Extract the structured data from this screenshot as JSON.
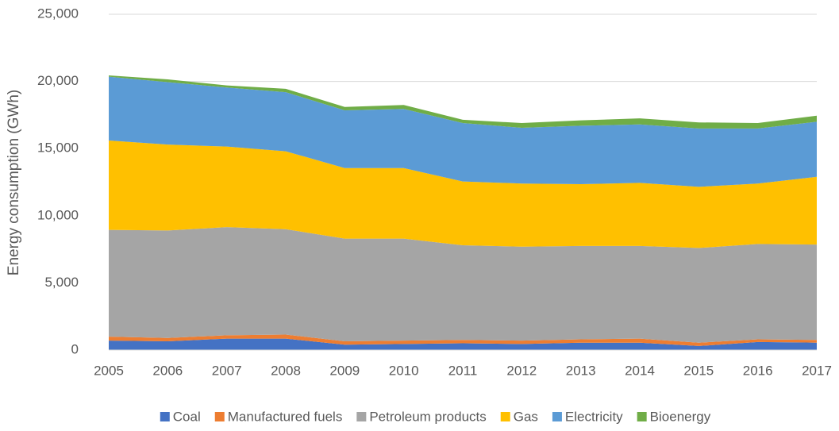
{
  "chart_data": {
    "type": "stacked_area",
    "y_label": "Energy consumption (GWh)",
    "x": [
      2005,
      2006,
      2007,
      2008,
      2009,
      2010,
      2011,
      2012,
      2013,
      2014,
      2015,
      2016,
      2017
    ],
    "xlim": [
      2005,
      2017
    ],
    "xticks": [
      2005,
      2006,
      2007,
      2008,
      2009,
      2010,
      2011,
      2012,
      2013,
      2014,
      2015,
      2016,
      2017
    ],
    "ylim": [
      0,
      25000
    ],
    "yticks": [
      0,
      {
        "value": 5000,
        "label": "5,000"
      },
      {
        "value": 10000,
        "label": "10,000"
      },
      {
        "value": 15000,
        "label": "15,000"
      },
      {
        "value": 20000,
        "label": "20,000"
      },
      {
        "value": 25000,
        "label": "25,000"
      }
    ],
    "grid": true,
    "legend": "bottom",
    "series": [
      {
        "name": "Coal",
        "color": "#4472c4",
        "values": [
          700,
          650,
          850,
          850,
          400,
          450,
          500,
          450,
          550,
          550,
          300,
          600,
          550
        ]
      },
      {
        "name": "Manufactured fuels",
        "color": "#ed7d31",
        "values": [
          300,
          250,
          250,
          300,
          250,
          250,
          250,
          250,
          250,
          300,
          250,
          200,
          200
        ]
      },
      {
        "name": "Petroleum products",
        "color": "#a5a5a5",
        "values": [
          7950,
          8000,
          8050,
          7850,
          7650,
          7600,
          7050,
          7000,
          6950,
          6900,
          7050,
          7100,
          7100
        ]
      },
      {
        "name": "Gas",
        "color": "#ffc000",
        "values": [
          6650,
          6400,
          6000,
          5800,
          5250,
          5250,
          4750,
          4700,
          4600,
          4700,
          4550,
          4500,
          5050
        ]
      },
      {
        "name": "Electricity",
        "color": "#5b9bd5",
        "values": [
          4750,
          4650,
          4400,
          4400,
          4300,
          4400,
          4350,
          4150,
          4350,
          4350,
          4350,
          4100,
          4100
        ]
      },
      {
        "name": "Bioenergy",
        "color": "#70ad47",
        "values": [
          100,
          200,
          150,
          250,
          250,
          300,
          250,
          350,
          400,
          450,
          450,
          400,
          450
        ]
      }
    ]
  }
}
